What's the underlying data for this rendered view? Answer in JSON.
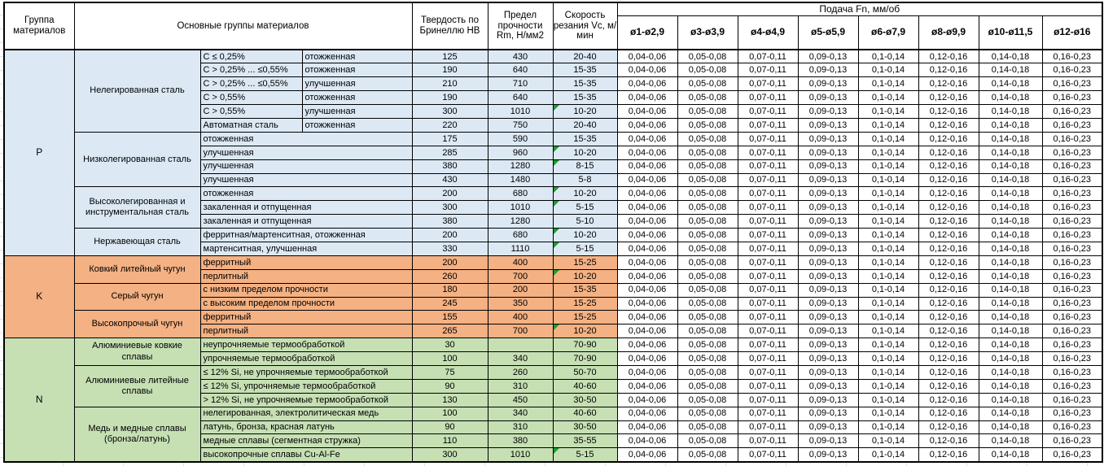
{
  "table": {
    "header": {
      "col_group": "Группа материалов",
      "col_main_groups": "Основные группы материалов",
      "col_hb": "Твердость по Бринеллю HB",
      "col_rm": "Предел прочности Rm, Н/мм2",
      "col_vc": "Скорость резания Vc, м/мин",
      "feed_title": "Подача Fn, мм/об",
      "feed_cols": [
        "ø1-ø2,9",
        "ø3-ø3,9",
        "ø4-ø4,9",
        "ø5-ø5,9",
        "ø6-ø7,9",
        "ø8-ø9,9",
        "ø10-ø11,5",
        "ø12-ø16"
      ]
    },
    "feed_values": [
      "0,04-0,06",
      "0,05-0,08",
      "0,07-0,11",
      "0,09-0,13",
      "0,1-0,14",
      "0,12-0,16",
      "0,14-0,18",
      "0,16-0,23"
    ],
    "groups": [
      {
        "code": "P",
        "subgroups": [
          {
            "name": "Нелегированная сталь",
            "rows": [
              {
                "sub1": "C ≤ 0,25%",
                "sub2": "отожженная",
                "hb": "125",
                "rm": "430",
                "vc": "20-40",
                "note": false
              },
              {
                "sub1": "C > 0,25% ... ≤0,55%",
                "sub2": "отожженная",
                "hb": "190",
                "rm": "640",
                "vc": "15-35",
                "note": false
              },
              {
                "sub1": "C > 0,25% ... ≤0,55%",
                "sub2": "улучшенная",
                "hb": "210",
                "rm": "710",
                "vc": "15-35",
                "note": false
              },
              {
                "sub1": "C > 0,55%",
                "sub2": "отожженная",
                "hb": "190",
                "rm": "640",
                "vc": "15-35",
                "note": false
              },
              {
                "sub1": "C > 0,55%",
                "sub2": "улучшенная",
                "hb": "300",
                "rm": "1010",
                "vc": "10-20",
                "note": true
              },
              {
                "sub1": "Автоматная сталь",
                "sub2": "отожженная",
                "hb": "220",
                "rm": "750",
                "vc": "20-40",
                "note": false
              }
            ]
          },
          {
            "name": "Низколегированная сталь",
            "rows": [
              {
                "sub1": "отожженная",
                "sub2": null,
                "hb": "175",
                "rm": "590",
                "vc": "15-35",
                "note": false
              },
              {
                "sub1": "улучшенная",
                "sub2": null,
                "hb": "285",
                "rm": "960",
                "vc": "10-20",
                "note": true
              },
              {
                "sub1": "улучшенная",
                "sub2": null,
                "hb": "380",
                "rm": "1280",
                "vc": "8-15",
                "note": true
              },
              {
                "sub1": "улучшенная",
                "sub2": null,
                "hb": "430",
                "rm": "1480",
                "vc": "5-8",
                "note": false
              }
            ]
          },
          {
            "name": "Высоколегированная и инструментальная сталь",
            "rows": [
              {
                "sub1": "отожженная",
                "sub2": null,
                "hb": "200",
                "rm": "680",
                "vc": "10-20",
                "note": true
              },
              {
                "sub1": "закаленная и отпущенная",
                "sub2": null,
                "hb": "300",
                "rm": "1010",
                "vc": "5-15",
                "note": true
              },
              {
                "sub1": "закаленная и отпущенная",
                "sub2": null,
                "hb": "380",
                "rm": "1280",
                "vc": "5-10",
                "note": false
              }
            ]
          },
          {
            "name": "Нержавеющая сталь",
            "rows": [
              {
                "sub1": "ферритная/мартенситная, отожженная",
                "sub2": null,
                "hb": "200",
                "rm": "680",
                "vc": "10-20",
                "note": true
              },
              {
                "sub1": "мартенситная, улучшенная",
                "sub2": null,
                "hb": "330",
                "rm": "1110",
                "vc": "5-15",
                "note": true
              }
            ]
          }
        ]
      },
      {
        "code": "K",
        "subgroups": [
          {
            "name": "Ковкий литейный чугун",
            "rows": [
              {
                "sub1": "ферритный",
                "sub2": null,
                "hb": "200",
                "rm": "400",
                "vc": "15-25",
                "note": false
              },
              {
                "sub1": "перлитный",
                "sub2": null,
                "hb": "260",
                "rm": "700",
                "vc": "10-20",
                "note": true
              }
            ]
          },
          {
            "name": "Серый чугун",
            "rows": [
              {
                "sub1": "с низким пределом прочности",
                "sub2": null,
                "hb": "180",
                "rm": "200",
                "vc": "15-35",
                "note": false
              },
              {
                "sub1": "с высоким пределом прочности",
                "sub2": null,
                "hb": "245",
                "rm": "350",
                "vc": "15-25",
                "note": false
              }
            ]
          },
          {
            "name": "Высокопрочный чугун",
            "rows": [
              {
                "sub1": "ферритный",
                "sub2": null,
                "hb": "155",
                "rm": "400",
                "vc": "15-25",
                "note": false
              },
              {
                "sub1": "перлитный",
                "sub2": null,
                "hb": "265",
                "rm": "700",
                "vc": "10-20",
                "note": true
              }
            ]
          }
        ]
      },
      {
        "code": "N",
        "subgroups": [
          {
            "name": "Алюминиевые ковкие сплавы",
            "rows": [
              {
                "sub1": "неупрочняемые термообработкой",
                "sub2": null,
                "hb": "30",
                "rm": "",
                "vc": "70-90",
                "note": false
              },
              {
                "sub1": "упрочняемые термообработкой",
                "sub2": null,
                "hb": "100",
                "rm": "340",
                "vc": "70-90",
                "note": false
              }
            ]
          },
          {
            "name": "Алюминиевые литейные сплавы",
            "rows": [
              {
                "sub1": "≤ 12% Si, не упрочняемые термообработкой",
                "sub2": null,
                "hb": "75",
                "rm": "260",
                "vc": "50-70",
                "note": false
              },
              {
                "sub1": "≤ 12% Si, упрочняемые термообработкой",
                "sub2": null,
                "hb": "90",
                "rm": "310",
                "vc": "40-60",
                "note": false
              },
              {
                "sub1": "> 12% Si, не упрочняемые термообработкой",
                "sub2": null,
                "hb": "130",
                "rm": "450",
                "vc": "30-50",
                "note": false
              }
            ]
          },
          {
            "name": "Медь и медные сплавы (бронза/латунь)",
            "rows": [
              {
                "sub1": "нелегированная, электролитическая медь",
                "sub2": null,
                "hb": "100",
                "rm": "340",
                "vc": "40-60",
                "note": false
              },
              {
                "sub1": "латунь, бронза, красная латунь",
                "sub2": null,
                "hb": "90",
                "rm": "310",
                "vc": "30-50",
                "note": false
              },
              {
                "sub1": "медные сплавы (сегментная стружка)",
                "sub2": null,
                "hb": "110",
                "rm": "380",
                "vc": "35-55",
                "note": false
              },
              {
                "sub1": "высокопрочные сплавы Cu-Al-Fe",
                "sub2": null,
                "hb": "300",
                "rm": "1010",
                "vc": "5-15",
                "note": true
              }
            ]
          }
        ]
      }
    ]
  },
  "colors": {
    "group_p_bg": "#dce9f5",
    "group_k_bg": "#f4b183",
    "group_n_bg": "#c6e0b4",
    "border": "#000000",
    "note_marker": "#1e9c30"
  }
}
